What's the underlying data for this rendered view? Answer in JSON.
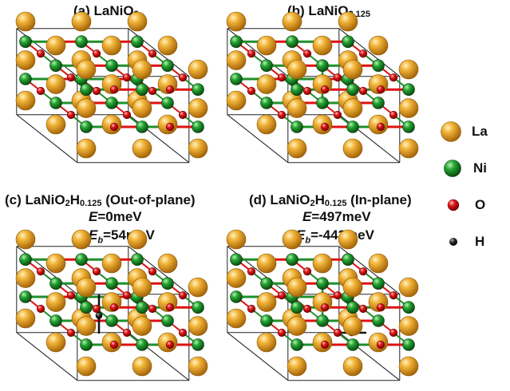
{
  "panels": [
    {
      "id": "a",
      "title_prefix": "(a) LaNiO",
      "title_sub": "2"
    },
    {
      "id": "b",
      "title_prefix": "(b) LaNiO",
      "title_sub": "2.125"
    },
    {
      "id": "c",
      "title_prefix": "(c) LaNiO",
      "title_sub": "2",
      "title_mid": "H",
      "title_sub2": "0.125",
      "title_suffix": " (Out-of-plane)",
      "energy_label": "E",
      "energy_value": "=0meV",
      "eb_label": "E",
      "eb_sub": "b",
      "eb_value": "=54meV"
    },
    {
      "id": "d",
      "title_prefix": "(d) LaNiO",
      "title_sub": "2",
      "title_mid": "H",
      "title_sub2": "0.125",
      "title_suffix": " (In-plane)",
      "energy_label": "E",
      "energy_value": "=497meV",
      "eb_label": "E",
      "eb_sub": "b",
      "eb_value": "=-443meV"
    }
  ],
  "legend": [
    {
      "label": "La",
      "color": "#e6a01a"
    },
    {
      "label": "Ni",
      "color": "#1f8f2a"
    },
    {
      "label": "O",
      "color": "#dd1111"
    },
    {
      "label": "H",
      "color": "#111111"
    }
  ]
}
